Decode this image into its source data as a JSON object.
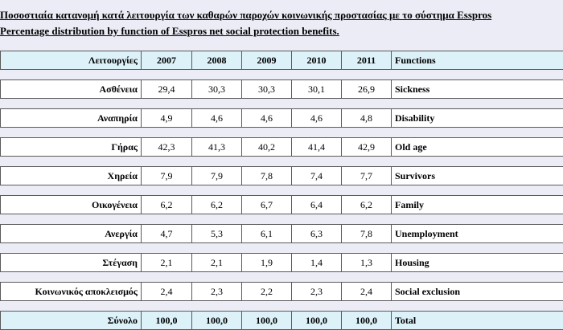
{
  "title_gr": "Ποσοστιαία κατανομή κατά λειτουργία των καθαρών παροχών κοινωνικής προστασίας με το σύστημα Esspros",
  "title_en": "Percentage distribution by function of Esspros net social protection benefits.",
  "table": {
    "header": {
      "label_gr": "Λειτουργίες",
      "years": [
        "2007",
        "2008",
        "2009",
        "2010",
        "2011"
      ],
      "label_en": "Functions"
    },
    "rows": [
      {
        "gr": "Ασθένεια",
        "values": [
          "29,4",
          "30,3",
          "30,3",
          "30,1",
          "26,9"
        ],
        "en": "Sickness"
      },
      {
        "gr": "Αναπηρία",
        "values": [
          "4,9",
          "4,6",
          "4,6",
          "4,6",
          "4,8"
        ],
        "en": "Disability"
      },
      {
        "gr": "Γήρας",
        "values": [
          "42,3",
          "41,3",
          "40,2",
          "41,4",
          "42,9"
        ],
        "en": "Old age"
      },
      {
        "gr": "Χηρεία",
        "values": [
          "7,9",
          "7,9",
          "7,8",
          "7,4",
          "7,7"
        ],
        "en": "Survivors"
      },
      {
        "gr": "Οικογένεια",
        "values": [
          "6,2",
          "6,2",
          "6,7",
          "6,4",
          "6,2"
        ],
        "en": "Family"
      },
      {
        "gr": "Ανεργία",
        "values": [
          "4,7",
          "5,3",
          "6,1",
          "6,3",
          "7,8"
        ],
        "en": "Unemployment"
      },
      {
        "gr": "Στέγαση",
        "values": [
          "2,1",
          "2,1",
          "1,9",
          "1,4",
          "1,3"
        ],
        "en": "Housing"
      },
      {
        "gr": "Κοινωνικός αποκλεισμός",
        "values": [
          "2,4",
          "2,3",
          "2,2",
          "2,3",
          "2,4"
        ],
        "en": "Social exclusion"
      }
    ],
    "total": {
      "gr": "Σύνολο",
      "values": [
        "100,0",
        "100,0",
        "100,0",
        "100,0",
        "100,0"
      ],
      "en": "Total"
    }
  }
}
